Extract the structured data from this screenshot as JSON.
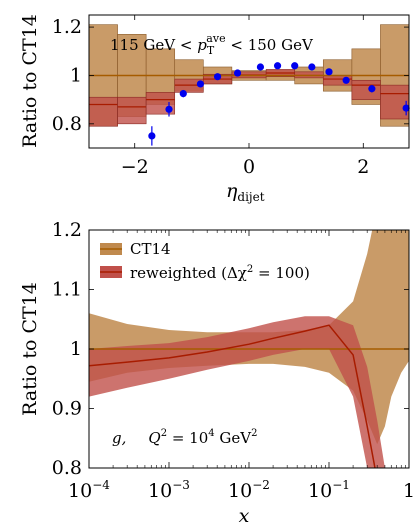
{
  "colors": {
    "ct14": "#c08a4e",
    "ct14_line": "#a65c00",
    "reweighted": "#c0504a",
    "reweighted_line": "#a81c00",
    "data_points": "#0000ee"
  },
  "chart_data": [
    {
      "type": "scatter",
      "ylabel": "Ratio to CT14",
      "xlabel": "η_dijet",
      "xlim": [
        -2.8,
        2.8
      ],
      "ylim": [
        0.7,
        1.25
      ],
      "xticks": [
        -2,
        0,
        2
      ],
      "xtick_labels": [
        "−2",
        "0",
        "2"
      ],
      "yticks": [
        0.8,
        1.0,
        1.2
      ],
      "ytick_labels": [
        "0.8",
        "1",
        "1.2"
      ],
      "annotation": "115 GeV < p_T^ave < 150 GeV",
      "bins": [
        -2.8,
        -2.3,
        -1.8,
        -1.3,
        -0.8,
        -0.3,
        0.3,
        0.8,
        1.3,
        1.8,
        2.3,
        2.8
      ],
      "ct14_band": {
        "lower": [
          0.79,
          0.83,
          0.88,
          0.935,
          0.965,
          0.98,
          0.98,
          0.965,
          0.935,
          0.88,
          0.79
        ],
        "upper": [
          1.21,
          1.17,
          1.11,
          1.065,
          1.035,
          1.02,
          1.02,
          1.035,
          1.065,
          1.11,
          1.21
        ],
        "central": 1.0
      },
      "reweighted_band": {
        "lower": [
          0.79,
          0.8,
          0.84,
          0.93,
          0.965,
          0.99,
          0.995,
          0.99,
          0.96,
          0.9,
          0.82
        ],
        "upper": [
          0.91,
          0.91,
          0.93,
          0.985,
          1.005,
          1.015,
          1.025,
          1.015,
          1.0,
          0.98,
          0.96
        ],
        "central": [
          0.88,
          0.87,
          0.9,
          0.96,
          0.985,
          1.002,
          1.01,
          1.0,
          0.985,
          0.96,
          0.925
        ]
      },
      "points": {
        "x": [
          -1.7,
          -1.4,
          -1.15,
          -0.85,
          -0.55,
          -0.2,
          0.2,
          0.5,
          0.8,
          1.1,
          1.4,
          1.7,
          2.15,
          2.75
        ],
        "y": [
          0.75,
          0.86,
          0.925,
          0.965,
          0.995,
          1.01,
          1.035,
          1.04,
          1.04,
          1.035,
          1.015,
          0.98,
          0.945,
          0.865
        ],
        "err": [
          0.04,
          0.03,
          0.015,
          0.012,
          0.01,
          0.008,
          0.008,
          0.008,
          0.01,
          0.01,
          0.01,
          0.012,
          0.015,
          0.03
        ]
      }
    },
    {
      "type": "area",
      "ylabel": "Ratio to CT14",
      "xlabel": "x",
      "xscale": "log",
      "xlim": [
        0.0001,
        1
      ],
      "ylim": [
        0.8,
        1.2
      ],
      "xticks": [
        0.0001,
        0.001,
        0.01,
        0.1,
        1
      ],
      "xtick_labels": [
        "10",
        "10",
        "10",
        "10",
        "1"
      ],
      "xtick_exponents": [
        "−4",
        "−3",
        "−2",
        "−1",
        ""
      ],
      "yticks": [
        0.8,
        0.9,
        1.0,
        1.1,
        1.2
      ],
      "ytick_labels": [
        "0.8",
        "0.9",
        "1",
        "1.1",
        "1.2"
      ],
      "legend": [
        "CT14",
        "reweighted (Δχ² = 100)"
      ],
      "legend_position": "top-left",
      "annotation": "g,   Q² = 10⁴ GeV²",
      "x": [
        0.0001,
        0.0003,
        0.001,
        0.003,
        0.01,
        0.02,
        0.05,
        0.1,
        0.2,
        0.3,
        0.4,
        0.5,
        0.6,
        0.8,
        1.0
      ],
      "ct14_band": {
        "upper": [
          1.06,
          1.042,
          1.032,
          1.028,
          1.028,
          1.028,
          1.032,
          1.04,
          1.08,
          1.16,
          1.24,
          1.3,
          1.3,
          1.3,
          1.3
        ],
        "lower": [
          0.945,
          0.96,
          0.968,
          0.972,
          0.975,
          0.975,
          0.97,
          0.96,
          0.93,
          0.88,
          0.84,
          0.87,
          0.92,
          0.96,
          0.98
        ],
        "central": 1.0
      },
      "reweighted_band": {
        "upper": [
          1.0,
          1.005,
          1.01,
          1.02,
          1.035,
          1.045,
          1.055,
          1.055,
          1.04,
          0.97,
          0.88,
          0.8,
          0.8,
          0.8,
          0.8
        ],
        "lower": [
          0.92,
          0.935,
          0.95,
          0.965,
          0.98,
          0.99,
          1.0,
          1.0,
          0.92,
          0.8,
          0.8,
          0.8,
          0.8,
          0.8,
          0.8
        ],
        "central": [
          0.972,
          0.978,
          0.985,
          0.995,
          1.008,
          1.018,
          1.03,
          1.04,
          0.99,
          0.87,
          0.78,
          0.7,
          0.7,
          0.7,
          0.7
        ]
      }
    }
  ],
  "panel1": {
    "ylabel": "Ratio to CT14",
    "xlabel_main": "η",
    "xlabel_sub": "dijet",
    "annot_prefix": "115 GeV < ",
    "annot_p": "p",
    "annot_T": "T",
    "annot_ave": "ave",
    "annot_suffix": " < 150 GeV"
  },
  "panel2": {
    "ylabel": "Ratio to CT14",
    "xlabel": "x",
    "legend_ct14": "CT14",
    "legend_rw": "reweighted (Δχ",
    "legend_rw_sup": "2",
    "legend_rw_tail": " = 100)",
    "annot_g": "g,",
    "annot_Q": "Q",
    "annot_Q_sup": "2",
    "annot_eq": " = 10",
    "annot_exp": "4",
    "annot_unit": " GeV",
    "annot_unit_sup": "2"
  }
}
